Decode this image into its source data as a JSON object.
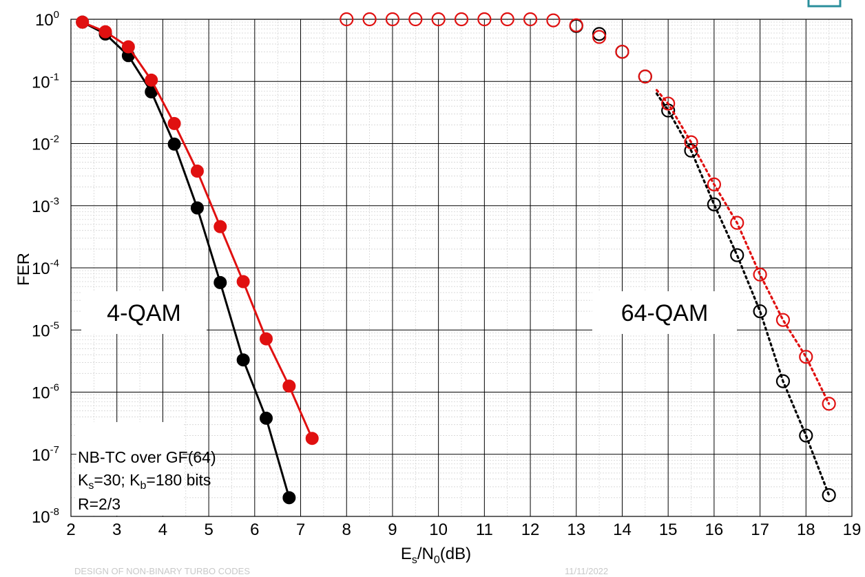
{
  "chart_data": {
    "type": "scatter",
    "title": "",
    "xlabel": {
      "main": "E",
      "sub1": "s",
      "mid": "/N",
      "sub2": "0",
      "tail": "(dB)"
    },
    "ylabel": "FER",
    "xlim": [
      2,
      19
    ],
    "ylim_exp": [
      -8,
      0
    ],
    "yscale": "log",
    "grid": true,
    "x_ticks": [
      "2",
      "3",
      "4",
      "5",
      "6",
      "7",
      "8",
      "9",
      "10",
      "11",
      "12",
      "13",
      "14",
      "15",
      "16",
      "17",
      "18",
      "19"
    ],
    "y_ticks": [
      {
        "base": "10",
        "exp": "0"
      },
      {
        "base": "10",
        "exp": "-1"
      },
      {
        "base": "10",
        "exp": "-2"
      },
      {
        "base": "10",
        "exp": "-3"
      },
      {
        "base": "10",
        "exp": "-4"
      },
      {
        "base": "10",
        "exp": "-5"
      },
      {
        "base": "10",
        "exp": "-6"
      },
      {
        "base": "10",
        "exp": "-7"
      },
      {
        "base": "10",
        "exp": "-8"
      }
    ],
    "series": [
      {
        "color": "#000000",
        "marker": "filled-circle",
        "line": "solid",
        "x": [
          2.25,
          2.75,
          3.25,
          3.75,
          4.25,
          4.75,
          5.25,
          5.75,
          6.25,
          6.75
        ],
        "y": [
          0.9,
          0.58,
          0.26,
          0.068,
          0.0098,
          0.00092,
          5.8e-05,
          3.3e-06,
          3.8e-07,
          2e-08
        ]
      },
      {
        "color": "#e01010",
        "marker": "filled-circle",
        "line": "solid",
        "x": [
          2.25,
          2.75,
          3.25,
          3.75,
          4.25,
          4.75,
          5.25,
          5.75,
          6.25,
          6.75,
          7.25
        ],
        "y": [
          0.9,
          0.63,
          0.36,
          0.105,
          0.021,
          0.0036,
          0.00046,
          6e-05,
          7.2e-06,
          1.25e-06,
          1.8e-07
        ]
      },
      {
        "color": "#000000",
        "marker": "open-circle",
        "line": "dotted",
        "dotted_from": 14.75,
        "x": [
          13.0,
          13.5,
          14.0,
          14.5,
          15.0,
          15.5,
          16.0,
          16.5,
          17.0,
          17.5,
          18.0,
          18.5
        ],
        "y": [
          0.78,
          0.58,
          0.3,
          0.12,
          0.034,
          0.0077,
          0.00105,
          0.00016,
          2e-05,
          1.5e-06,
          2e-07,
          2.2e-08
        ]
      },
      {
        "color": "#e01010",
        "marker": "open-circle",
        "line": "dotted",
        "dotted_from": 14.75,
        "x": [
          8.0,
          8.5,
          9.0,
          9.5,
          10.0,
          10.5,
          11.0,
          11.5,
          12.0,
          12.5,
          13.0,
          13.5,
          14.0,
          14.5,
          15.0,
          15.5,
          16.0,
          16.5,
          17.0,
          17.5,
          18.0,
          18.5
        ],
        "y": [
          1.0,
          1.0,
          1.0,
          1.0,
          1.0,
          1.0,
          1.0,
          1.0,
          1.0,
          0.96,
          0.8,
          0.52,
          0.3,
          0.12,
          0.044,
          0.0105,
          0.0022,
          0.00053,
          7.8e-05,
          1.45e-05,
          3.7e-06,
          6.5e-07
        ]
      }
    ],
    "annotations": {
      "qam4": "4-QAM",
      "qam64": "64-QAM",
      "info": {
        "line1": "NB-TC over GF(64)",
        "line2": {
          "k1": "K",
          "s1": "s",
          "m1": "=30; K",
          "s2": "b",
          "t": "=180 bits"
        },
        "line3": "R=2/3"
      }
    }
  },
  "footer": {
    "left": "DESIGN OF NON-BINARY TURBO CODES",
    "right": "11/11/2022"
  },
  "colors": {
    "black_series": "#000000",
    "red_series": "#e01010",
    "badge": "#2a8f9c"
  }
}
